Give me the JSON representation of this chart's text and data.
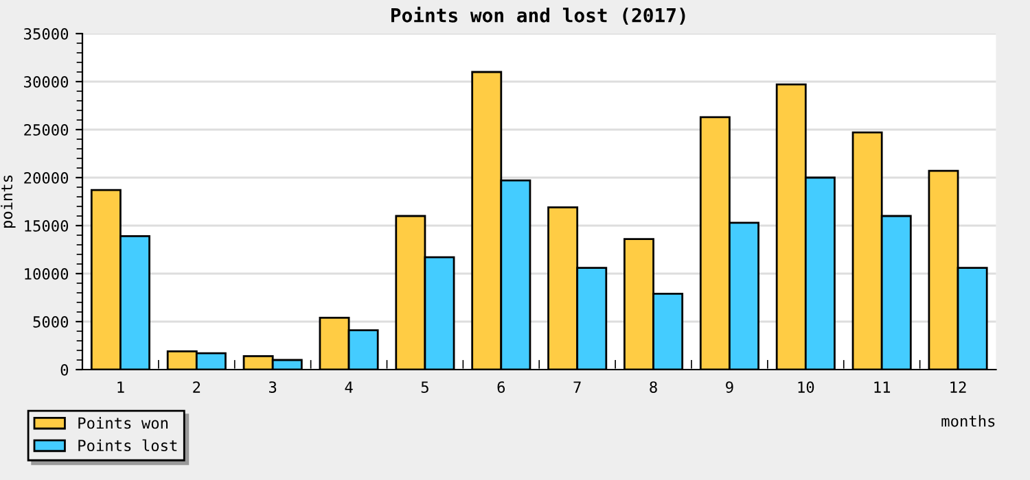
{
  "chart_data": {
    "type": "bar",
    "title": "Points won and lost (2017)",
    "xlabel": "months",
    "ylabel": "points",
    "categories": [
      "1",
      "2",
      "3",
      "4",
      "5",
      "6",
      "7",
      "8",
      "9",
      "10",
      "11",
      "12"
    ],
    "series": [
      {
        "name": "Points won",
        "color": "#ffcc44",
        "values": [
          18700,
          1900,
          1400,
          5400,
          16000,
          31000,
          16900,
          13600,
          26300,
          29700,
          24700,
          20700
        ]
      },
      {
        "name": "Points lost",
        "color": "#44ccff",
        "values": [
          13900,
          1700,
          1000,
          4100,
          11700,
          19700,
          10600,
          7900,
          15300,
          20000,
          16000,
          10600
        ]
      }
    ],
    "ylim": [
      0,
      35000
    ],
    "yticks": [
      0,
      5000,
      10000,
      15000,
      20000,
      25000,
      30000,
      35000
    ],
    "grid": "y",
    "legend": "bottom left"
  }
}
